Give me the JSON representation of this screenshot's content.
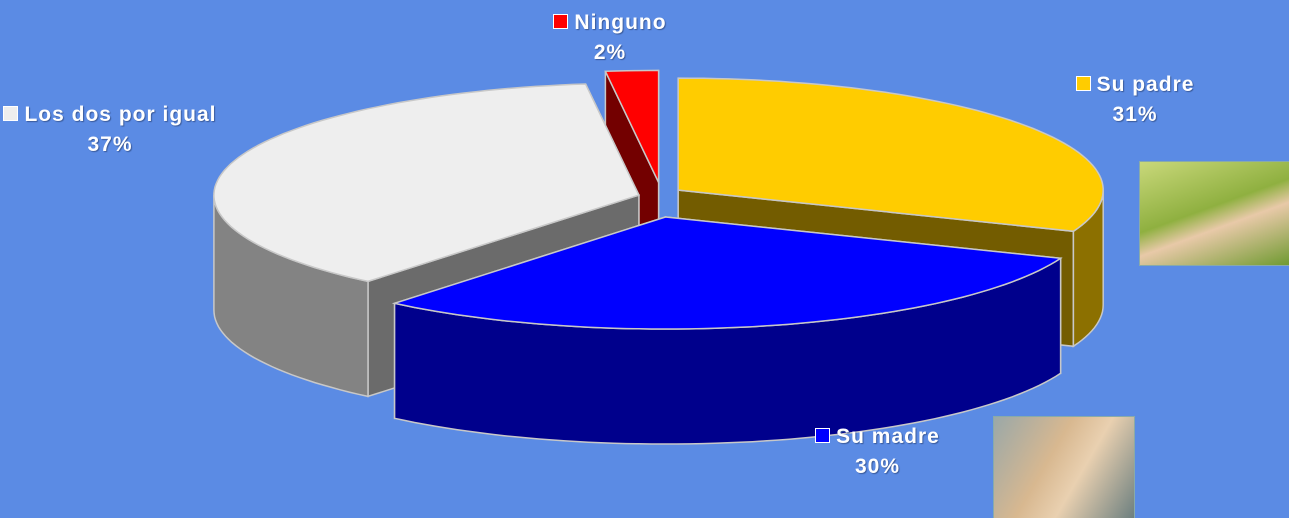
{
  "chart_data": {
    "type": "pie3d",
    "categories": [
      "Su padre",
      "Su madre",
      "Los dos por igual",
      "Ninguno"
    ],
    "values": [
      31,
      30,
      37,
      2
    ],
    "value_labels": [
      "31%",
      "30%",
      "37%",
      "2%"
    ],
    "colors": [
      "#ffcc00",
      "#0000ff",
      "#eeeeee",
      "#ff0000"
    ]
  }
}
